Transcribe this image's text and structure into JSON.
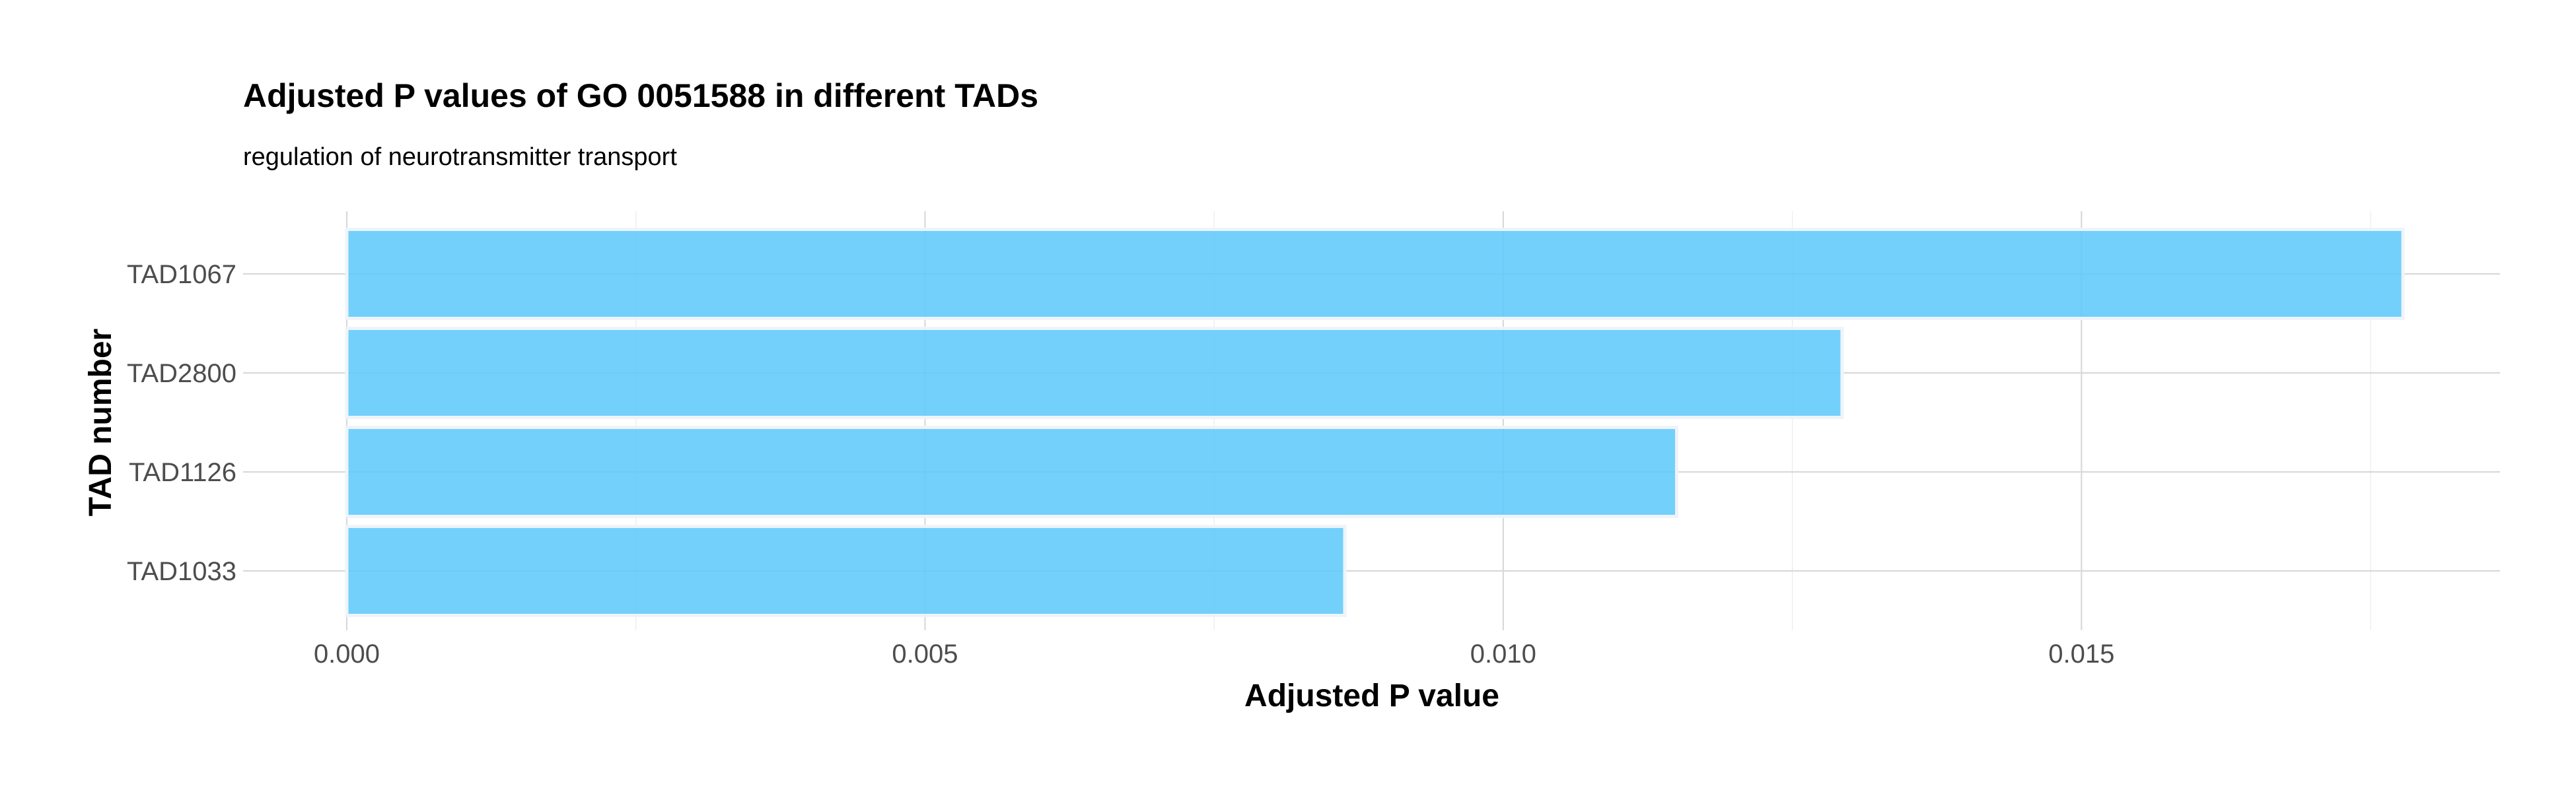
{
  "chart_data": {
    "type": "bar",
    "orientation": "horizontal",
    "title": "Adjusted P values of GO 0051588 in different TADs",
    "subtitle": "regulation of neurotransmitter transport",
    "xlabel": "Adjusted P value",
    "ylabel": "TAD number",
    "categories": [
      "TAD1067",
      "TAD2800",
      "TAD1126",
      "TAD1033"
    ],
    "values": [
      0.01778,
      0.01293,
      0.0115,
      0.00863
    ],
    "xlim": [
      0,
      0.01865
    ],
    "x_ticks": [
      0.0,
      0.005,
      0.01,
      0.015
    ],
    "x_tick_labels": [
      "0.000",
      "0.005",
      "0.010",
      "0.015"
    ],
    "grid": true,
    "bar_color": "#5bc8fa",
    "bar_outline_color": "#eef4fa"
  }
}
